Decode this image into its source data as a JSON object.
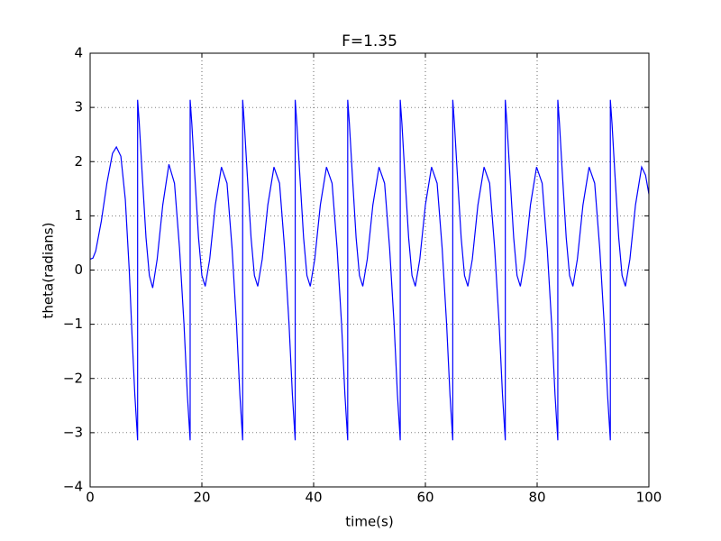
{
  "chart_data": {
    "type": "line",
    "title": "F=1.35",
    "x_label": "time(s)",
    "y_label": "theta(radians)",
    "xlim": [
      0,
      100
    ],
    "ylim": [
      -4,
      4
    ],
    "xticks": [
      0,
      20,
      40,
      60,
      80,
      100
    ],
    "yticks": [
      {
        "value": -4,
        "label": "−4"
      },
      {
        "value": -3,
        "label": "−3"
      },
      {
        "value": -2,
        "label": "−2"
      },
      {
        "value": -1,
        "label": "−1"
      },
      0,
      1,
      2,
      3,
      4
    ],
    "grid": true,
    "x": [
      0,
      0.5,
      1,
      2,
      3,
      4,
      4.7,
      5.5,
      6.3,
      7,
      7.5,
      8,
      8.5,
      8.5,
      8.8,
      9.3,
      10.0,
      10.6,
      11.2,
      12.0,
      13.0,
      14.1,
      15.1,
      16.0,
      16.8,
      17.4,
      17.9,
      17.9,
      18.2,
      18.7,
      19.4,
      20.0,
      20.6,
      21.4,
      22.4,
      23.5,
      24.5,
      25.4,
      26.2,
      26.8,
      27.3,
      27.3,
      27.6,
      28.1,
      28.8,
      29.4,
      30.0,
      30.8,
      31.8,
      32.9,
      33.9,
      34.8,
      35.6,
      36.2,
      36.7,
      36.7,
      37.0,
      37.5,
      38.2,
      38.8,
      39.4,
      40.2,
      41.2,
      42.3,
      43.3,
      44.2,
      45.0,
      45.6,
      46.1,
      46.1,
      46.4,
      46.9,
      47.6,
      48.2,
      48.8,
      49.6,
      50.6,
      51.7,
      52.7,
      53.6,
      54.4,
      55.0,
      55.5,
      55.5,
      55.8,
      56.3,
      57.0,
      57.6,
      58.2,
      59.0,
      60.0,
      61.1,
      62.1,
      63.0,
      63.8,
      64.4,
      64.9,
      64.9,
      65.2,
      65.7,
      66.4,
      67.0,
      67.6,
      68.4,
      69.4,
      70.5,
      71.5,
      72.4,
      73.2,
      73.8,
      74.3,
      74.3,
      74.6,
      75.1,
      75.8,
      76.4,
      77.0,
      77.8,
      78.8,
      79.9,
      80.9,
      81.8,
      82.6,
      83.2,
      83.7,
      83.7,
      84.0,
      84.5,
      85.2,
      85.8,
      86.4,
      87.2,
      88.2,
      89.3,
      90.3,
      91.2,
      92.0,
      92.6,
      93.1,
      93.1,
      93.4,
      93.9,
      94.6,
      95.2,
      95.8,
      96.6,
      97.6,
      98.7,
      99.4,
      100
    ],
    "series": [
      {
        "name": "theta",
        "color": "#0000ff",
        "values": [
          0.2,
          0.22,
          0.35,
          0.9,
          1.6,
          2.15,
          2.27,
          2.1,
          1.3,
          0.0,
          -1.2,
          -2.3,
          -3.14,
          3.14,
          2.7,
          1.8,
          0.6,
          -0.1,
          -0.33,
          0.2,
          1.2,
          1.95,
          1.6,
          0.4,
          -1.0,
          -2.3,
          -3.14,
          3.14,
          2.7,
          1.8,
          0.6,
          -0.1,
          -0.3,
          0.2,
          1.2,
          1.9,
          1.6,
          0.4,
          -1.0,
          -2.3,
          -3.14,
          3.14,
          2.7,
          1.8,
          0.6,
          -0.1,
          -0.3,
          0.2,
          1.2,
          1.9,
          1.6,
          0.4,
          -1.0,
          -2.3,
          -3.14,
          3.14,
          2.7,
          1.8,
          0.6,
          -0.1,
          -0.3,
          0.2,
          1.2,
          1.9,
          1.6,
          0.4,
          -1.0,
          -2.3,
          -3.14,
          3.14,
          2.7,
          1.8,
          0.6,
          -0.1,
          -0.3,
          0.2,
          1.2,
          1.9,
          1.6,
          0.4,
          -1.0,
          -2.3,
          -3.14,
          3.14,
          2.7,
          1.8,
          0.6,
          -0.1,
          -0.3,
          0.2,
          1.2,
          1.9,
          1.6,
          0.4,
          -1.0,
          -2.3,
          -3.14,
          3.14,
          2.7,
          1.8,
          0.6,
          -0.1,
          -0.3,
          0.2,
          1.2,
          1.9,
          1.6,
          0.4,
          -1.0,
          -2.3,
          -3.14,
          3.14,
          2.7,
          1.8,
          0.6,
          -0.1,
          -0.3,
          0.2,
          1.2,
          1.9,
          1.6,
          0.4,
          -1.0,
          -2.3,
          -3.14,
          3.14,
          2.7,
          1.8,
          0.6,
          -0.1,
          -0.3,
          0.2,
          1.2,
          1.9,
          1.6,
          0.4,
          -1.0,
          -2.3,
          -3.14,
          3.14,
          2.7,
          1.8,
          0.6,
          -0.1,
          -0.3,
          0.2,
          1.2,
          1.9,
          1.75,
          1.4
        ]
      }
    ]
  }
}
